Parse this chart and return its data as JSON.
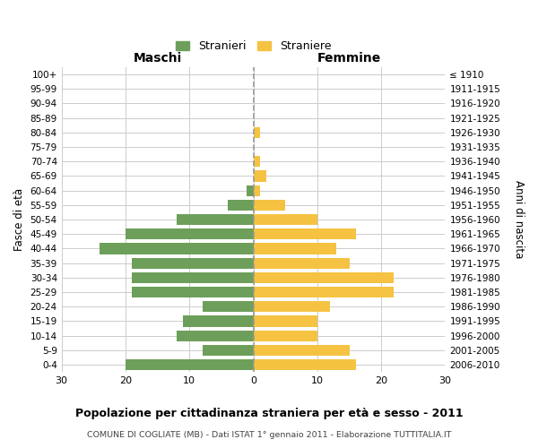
{
  "age_groups": [
    "100+",
    "95-99",
    "90-94",
    "85-89",
    "80-84",
    "75-79",
    "70-74",
    "65-69",
    "60-64",
    "55-59",
    "50-54",
    "45-49",
    "40-44",
    "35-39",
    "30-34",
    "25-29",
    "20-24",
    "15-19",
    "10-14",
    "5-9",
    "0-4"
  ],
  "birth_years": [
    "≤ 1910",
    "1911-1915",
    "1916-1920",
    "1921-1925",
    "1926-1930",
    "1931-1935",
    "1936-1940",
    "1941-1945",
    "1946-1950",
    "1951-1955",
    "1956-1960",
    "1961-1965",
    "1966-1970",
    "1971-1975",
    "1976-1980",
    "1981-1985",
    "1986-1990",
    "1991-1995",
    "1996-2000",
    "2001-2005",
    "2006-2010"
  ],
  "maschi": [
    0,
    0,
    0,
    0,
    0,
    0,
    0,
    0,
    1,
    4,
    12,
    20,
    24,
    19,
    19,
    19,
    8,
    11,
    12,
    8,
    20
  ],
  "femmine": [
    0,
    0,
    0,
    0,
    1,
    0,
    1,
    2,
    1,
    5,
    10,
    16,
    13,
    15,
    22,
    22,
    12,
    10,
    10,
    15,
    16
  ],
  "maschi_color": "#6d9f5b",
  "femmine_color": "#f5c242",
  "background_color": "#ffffff",
  "grid_color": "#cccccc",
  "dashed_line_color": "#999999",
  "title": "Popolazione per cittadinanza straniera per età e sesso - 2011",
  "subtitle": "COMUNE DI COGLIATE (MB) - Dati ISTAT 1° gennaio 2011 - Elaborazione TUTTITALIA.IT",
  "xlabel_left": "Maschi",
  "xlabel_right": "Femmine",
  "ylabel_left": "Fasce di età",
  "ylabel_right": "Anni di nascita",
  "legend_maschi": "Stranieri",
  "legend_femmine": "Straniere",
  "xlim": 30,
  "bar_height": 0.75
}
